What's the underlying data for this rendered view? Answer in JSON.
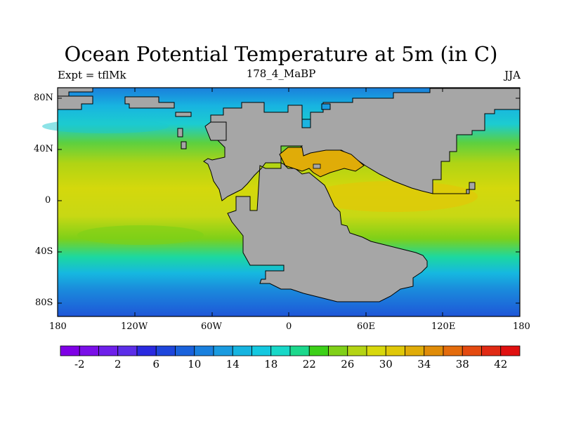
{
  "title": "Ocean Potential Temperature at 5m (in C)",
  "left_string": "Expt = tflMk",
  "center_string": "178_4_MaBP",
  "right_string": "JJA",
  "map": {
    "projection": "cylindrical equidistant",
    "lon_range": [
      -180,
      180
    ],
    "lat_range": [
      -90,
      90
    ],
    "lat_tick_labels": [
      "80N",
      "40N",
      "0",
      "40S",
      "80S"
    ],
    "lon_tick_labels": [
      "180",
      "120W",
      "60W",
      "0",
      "60E",
      "120E",
      "180"
    ],
    "land_color": "#a6a6a6",
    "field": "ocean potential temperature at 5m",
    "season": "JJA"
  },
  "colorbar": {
    "labels": [
      "-2",
      "2",
      "6",
      "10",
      "14",
      "18",
      "22",
      "26",
      "30",
      "34",
      "38",
      "42"
    ],
    "colors": [
      "#7f00e6",
      "#7a0fe8",
      "#6e20ea",
      "#5c2ee8",
      "#2a2ae0",
      "#1e46dc",
      "#1a62dc",
      "#1a80de",
      "#1a9be0",
      "#16b4e0",
      "#14c8e0",
      "#18d8c8",
      "#1cd88c",
      "#3cd018",
      "#80d018",
      "#b4d414",
      "#d8d80c",
      "#e0c808",
      "#e0ac08",
      "#e08c08",
      "#e46c0c",
      "#e44a10",
      "#e02a14",
      "#e01010"
    ]
  }
}
